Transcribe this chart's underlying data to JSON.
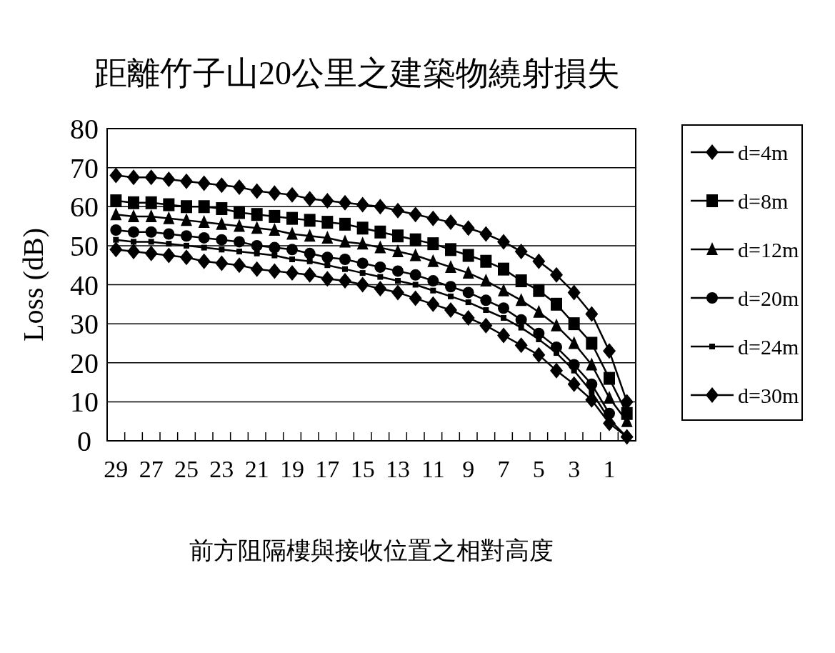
{
  "chart_data": {
    "type": "line",
    "title": "距離竹子山20公里之建築物繞射損失",
    "xlabel": "前方阻隔樓與接收位置之相對高度",
    "ylabel": "Loss (dB)",
    "categories": [
      "29",
      null,
      "27",
      null,
      "25",
      null,
      "23",
      null,
      "21",
      null,
      "19",
      null,
      "17",
      null,
      "15",
      null,
      "13",
      null,
      "11",
      null,
      "9",
      null,
      "7",
      null,
      "5",
      null,
      "3",
      null,
      "1",
      null
    ],
    "ylim": [
      0,
      80
    ],
    "yticks": [
      0,
      10,
      20,
      30,
      40,
      50,
      60,
      70,
      80
    ],
    "grid": "y",
    "legend": "right",
    "line_style": "solid",
    "series": [
      {
        "name": "d=4m",
        "color": "#000000",
        "marker": "diamond",
        "values": [
          68,
          67.5,
          67.5,
          67,
          66.5,
          66,
          65.5,
          65,
          64,
          63.5,
          63,
          62,
          61.5,
          61,
          60.5,
          60,
          59,
          58,
          57,
          56,
          54.5,
          53,
          51,
          48.5,
          46,
          42.5,
          38,
          32.5,
          23,
          10
        ]
      },
      {
        "name": "d=8m",
        "color": "#000000",
        "marker": "square",
        "values": [
          61.5,
          61,
          61,
          60.5,
          60,
          60,
          59.5,
          58.5,
          58,
          57.5,
          57,
          56.5,
          56,
          55.5,
          54.5,
          53.5,
          52.5,
          51.5,
          50.5,
          49,
          47.5,
          46,
          44,
          41,
          38.5,
          35,
          30,
          25,
          16,
          7
        ]
      },
      {
        "name": "d=12m",
        "color": "#000000",
        "marker": "triangle",
        "values": [
          58,
          57.5,
          57.5,
          57,
          56.5,
          56,
          55.5,
          55,
          54.5,
          54,
          53,
          52.5,
          52,
          51,
          50.5,
          49.5,
          48.5,
          47.5,
          46,
          44.5,
          43,
          41,
          38.5,
          36,
          33,
          29.5,
          25,
          19.5,
          11,
          5
        ]
      },
      {
        "name": "d=20m",
        "color": "#000000",
        "marker": "circle",
        "values": [
          54,
          53.5,
          53.5,
          53,
          52.5,
          52,
          51.5,
          51,
          50,
          49.5,
          49,
          48,
          47,
          46.5,
          45.5,
          44.5,
          43.5,
          42.5,
          41,
          39.5,
          38,
          36,
          34,
          31,
          27.5,
          24,
          19.5,
          14.5,
          7,
          null
        ]
      },
      {
        "name": "d=24m",
        "color": "#000000",
        "marker": "square_small",
        "values": [
          51.5,
          51,
          51,
          50.5,
          50,
          49.5,
          49,
          48.5,
          48,
          47.5,
          46.5,
          46,
          45,
          44,
          43,
          42,
          41,
          40,
          38.5,
          37,
          35.5,
          33.5,
          31.5,
          29,
          26,
          22.5,
          18,
          12.5,
          5.5,
          1
        ]
      },
      {
        "name": "d=30m",
        "color": "#000000",
        "marker": "diamond",
        "values": [
          49,
          48.5,
          48,
          47.5,
          47,
          46,
          45.5,
          45,
          44,
          43.5,
          43,
          42.5,
          41.5,
          41,
          40,
          39,
          38,
          36.5,
          35,
          33.5,
          31.5,
          29.5,
          27,
          24.5,
          22,
          18,
          14.5,
          10.5,
          4.5,
          1
        ]
      }
    ]
  }
}
